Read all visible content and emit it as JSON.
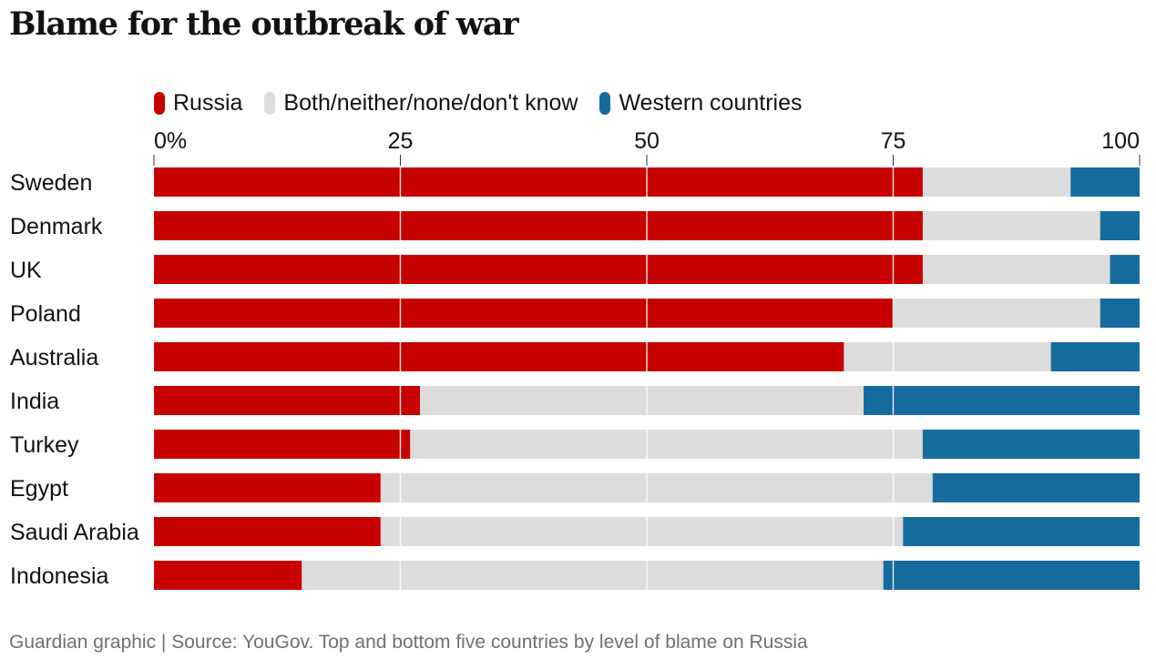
{
  "title": "Blame for the outbreak of war",
  "source": "Guardian graphic | Source: YouGov. Top and bottom five countries by level of blame on Russia",
  "colors": {
    "russia": "#c70000",
    "both": "#dcdcdc",
    "western": "#156b9e",
    "tick": "#333333",
    "gridline": "#ffffff"
  },
  "chart_data": {
    "type": "bar",
    "orientation": "horizontal",
    "stacked": true,
    "categories": [
      "Sweden",
      "Denmark",
      "UK",
      "Poland",
      "Australia",
      "India",
      "Turkey",
      "Egypt",
      "Saudi Arabia",
      "Indonesia"
    ],
    "series": [
      {
        "name": "Russia",
        "key": "russia",
        "values": [
          78,
          78,
          78,
          75,
          70,
          27,
          26,
          23,
          23,
          15
        ]
      },
      {
        "name": "Both/neither/none/don't know",
        "key": "both",
        "values": [
          15,
          18,
          19,
          21,
          21,
          45,
          52,
          56,
          53,
          59
        ]
      },
      {
        "name": "Western countries",
        "key": "western",
        "values": [
          7,
          4,
          3,
          4,
          9,
          28,
          22,
          21,
          24,
          26
        ]
      }
    ],
    "x_ticks": [
      "0%",
      "25",
      "50",
      "75",
      "100"
    ],
    "x_tick_values": [
      0,
      25,
      50,
      75,
      100
    ],
    "xlim": [
      0,
      100
    ],
    "legend_position": "top-left",
    "grid": true
  }
}
